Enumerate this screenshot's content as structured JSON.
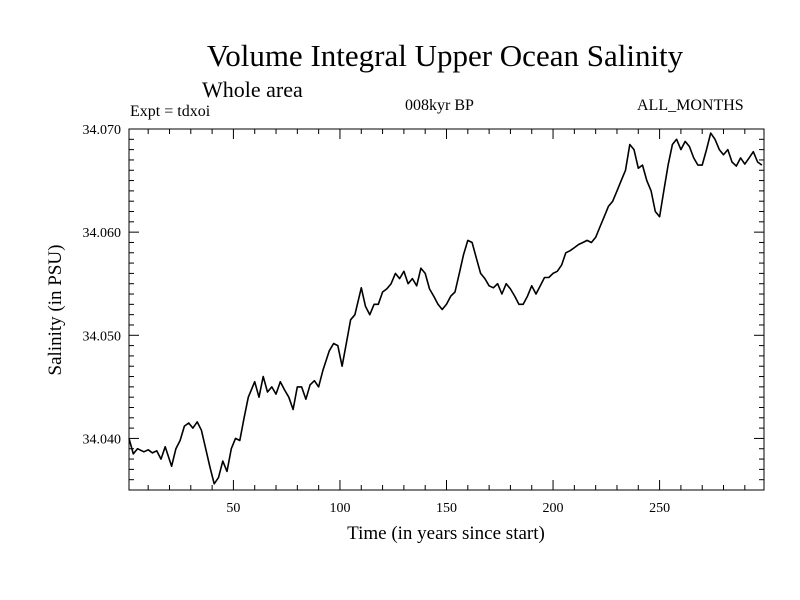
{
  "chart_data": {
    "type": "line",
    "title": "Volume Integral Upper Ocean Salinity",
    "subtitle": "Whole area",
    "annotations": {
      "left": "Expt = tdxoi",
      "center": "008kyr BP",
      "right": "ALL_MONTHS"
    },
    "xlabel": "Time (in years since start)",
    "ylabel": "Salinity (in PSU)",
    "xlim": [
      1,
      299
    ],
    "ylim": [
      34.035,
      34.07
    ],
    "x_ticks": [
      50,
      100,
      150,
      200,
      250
    ],
    "x_tick_labels": [
      "50",
      "100",
      "150",
      "200",
      "250"
    ],
    "y_ticks": [
      34.04,
      34.05,
      34.06,
      34.07
    ],
    "y_tick_labels": [
      "34.040",
      "34.050",
      "34.060",
      "34.070"
    ],
    "grid": false,
    "legend": "none",
    "line_color": "#000000",
    "series": [
      {
        "x": [
          1,
          3,
          5,
          8,
          10,
          12,
          14,
          16,
          18,
          21,
          23,
          25,
          27,
          29,
          31,
          33,
          35,
          37,
          39,
          41,
          43,
          45,
          47,
          49,
          51,
          53,
          55,
          57,
          60,
          62,
          64,
          66,
          68,
          70,
          72,
          74,
          76,
          78,
          80,
          82,
          84,
          86,
          88,
          90,
          92,
          95,
          97,
          99,
          101,
          103,
          105,
          107,
          110,
          112,
          114,
          116,
          118,
          120,
          122,
          124,
          126,
          128,
          130,
          132,
          134,
          136,
          138,
          140,
          142,
          144,
          146,
          148,
          150,
          152,
          154,
          156,
          158,
          160,
          162,
          164,
          166,
          168,
          170,
          172,
          174,
          176,
          178,
          180,
          182,
          184,
          186,
          188,
          190,
          192,
          194,
          196,
          198,
          200,
          202,
          204,
          206,
          208,
          210,
          212,
          214,
          216,
          218,
          220,
          222,
          224,
          226,
          228,
          230,
          232,
          234,
          236,
          238,
          240,
          242,
          244,
          246,
          248,
          250,
          252,
          254,
          256,
          258,
          260,
          262,
          264,
          266,
          268,
          270,
          272,
          274,
          276,
          278,
          280,
          282,
          284,
          286,
          288,
          290,
          292,
          294,
          296,
          298
        ],
        "y": [
          34.04,
          34.0385,
          34.039,
          34.0387,
          34.0389,
          34.0386,
          34.0388,
          34.038,
          34.0392,
          34.0373,
          34.039,
          34.0398,
          34.0412,
          34.0415,
          34.041,
          34.0416,
          34.0408,
          34.039,
          34.0372,
          34.0356,
          34.0362,
          34.0378,
          34.0368,
          34.039,
          34.04,
          34.0398,
          34.042,
          34.044,
          34.0455,
          34.044,
          34.046,
          34.0445,
          34.045,
          34.0443,
          34.0455,
          34.0447,
          34.044,
          34.0428,
          34.045,
          34.045,
          34.0438,
          34.0452,
          34.0456,
          34.045,
          34.0466,
          34.0485,
          34.0492,
          34.049,
          34.047,
          34.0492,
          34.0515,
          34.052,
          34.0546,
          34.0528,
          34.052,
          34.053,
          34.053,
          34.0542,
          34.0545,
          34.055,
          34.056,
          34.0555,
          34.0562,
          34.055,
          34.0555,
          34.0548,
          34.0565,
          34.056,
          34.0545,
          34.0538,
          34.053,
          34.0525,
          34.053,
          34.0538,
          34.0542,
          34.056,
          34.0578,
          34.0592,
          34.059,
          34.0575,
          34.056,
          34.0555,
          34.0548,
          34.0546,
          34.055,
          34.054,
          34.055,
          34.0545,
          34.0538,
          34.053,
          34.053,
          34.0538,
          34.0548,
          34.054,
          34.0548,
          34.0556,
          34.0556,
          34.056,
          34.0562,
          34.0568,
          34.058,
          34.0582,
          34.0585,
          34.0588,
          34.059,
          34.0592,
          34.059,
          34.0595,
          34.0605,
          34.0615,
          34.0625,
          34.063,
          34.064,
          34.065,
          34.066,
          34.0685,
          34.068,
          34.0662,
          34.0665,
          34.065,
          34.064,
          34.062,
          34.0615,
          34.064,
          34.0665,
          34.0685,
          34.069,
          34.068,
          34.0688,
          34.0683,
          34.0672,
          34.0665,
          34.0665,
          34.068,
          34.0696,
          34.069,
          34.068,
          34.0675,
          34.068,
          34.0668,
          34.0664,
          34.0672,
          34.0666,
          34.0672,
          34.0678,
          34.0668,
          34.0665
        ]
      }
    ]
  }
}
